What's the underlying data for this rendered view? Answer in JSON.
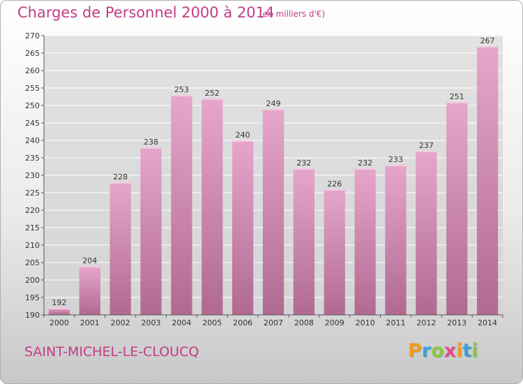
{
  "title": "Charges de Personnel 2000 à 2014",
  "subtitle": "(en milliers d'€)",
  "commune": "SAINT-MICHEL-LE-CLOUCQ",
  "logo": {
    "letters": [
      "P",
      "r",
      "o",
      "x",
      "i",
      "t",
      "i"
    ],
    "colors": [
      "#f39a1f",
      "#3aa0d8",
      "#8cc63f",
      "#e94b8a",
      "#f39a1f",
      "#3aa0d8",
      "#8cc63f"
    ]
  },
  "colors": {
    "accent": "#c33c86",
    "bar_top": "#e6a6cb",
    "bar_bottom": "#b06a92"
  },
  "chart_data": {
    "type": "bar",
    "title": "Charges de Personnel 2000 à 2014",
    "subtitle": "(en milliers d'€)",
    "categories": [
      "2000",
      "2001",
      "2002",
      "2003",
      "2004",
      "2005",
      "2006",
      "2007",
      "2008",
      "2009",
      "2010",
      "2011",
      "2012",
      "2013",
      "2014"
    ],
    "values": [
      192,
      204,
      228,
      238,
      253,
      252,
      240,
      249,
      232,
      226,
      232,
      233,
      237,
      251,
      267
    ],
    "ylim": [
      190,
      270
    ],
    "yticks": [
      190,
      195,
      200,
      205,
      210,
      215,
      220,
      225,
      230,
      235,
      240,
      245,
      250,
      255,
      260,
      265,
      270
    ],
    "grid": true,
    "xlabel": "",
    "ylabel": ""
  }
}
